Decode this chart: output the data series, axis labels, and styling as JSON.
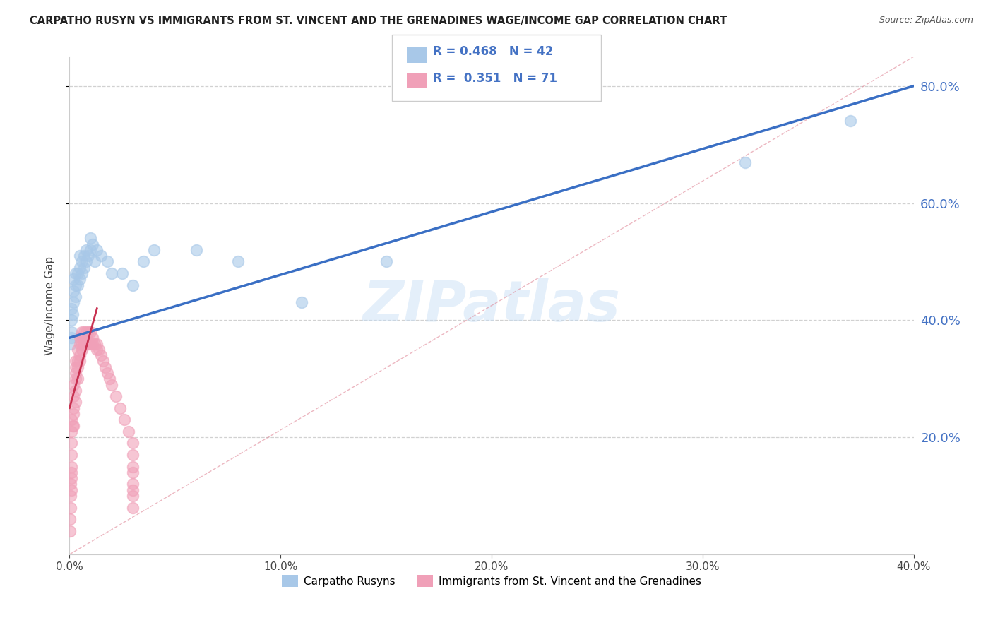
{
  "title": "CARPATHO RUSYN VS IMMIGRANTS FROM ST. VINCENT AND THE GRENADINES WAGE/INCOME GAP CORRELATION CHART",
  "source": "Source: ZipAtlas.com",
  "ylabel": "Wage/Income Gap",
  "watermark": "ZIPatlas",
  "series1_label": "Carpatho Rusyns",
  "series2_label": "Immigrants from St. Vincent and the Grenadines",
  "series1_R": 0.468,
  "series1_N": 42,
  "series2_R": 0.351,
  "series2_N": 71,
  "series1_color": "#a8c8e8",
  "series2_color": "#f0a0b8",
  "line1_color": "#3a6fc4",
  "line2_color": "#c83050",
  "dash_color": "#e08898",
  "xlim": [
    0.0,
    0.4
  ],
  "ylim": [
    0.0,
    0.85
  ],
  "xticks": [
    0.0,
    0.1,
    0.2,
    0.3,
    0.4
  ],
  "yticks": [
    0.2,
    0.4,
    0.6,
    0.8
  ],
  "background_color": "#ffffff",
  "grid_color": "#cccccc",
  "series1_x": [
    0.0005,
    0.0008,
    0.001,
    0.001,
    0.001,
    0.0015,
    0.002,
    0.002,
    0.002,
    0.003,
    0.003,
    0.003,
    0.004,
    0.004,
    0.005,
    0.005,
    0.005,
    0.006,
    0.006,
    0.007,
    0.007,
    0.008,
    0.008,
    0.009,
    0.01,
    0.01,
    0.011,
    0.012,
    0.013,
    0.015,
    0.018,
    0.02,
    0.025,
    0.03,
    0.035,
    0.04,
    0.06,
    0.08,
    0.11,
    0.15,
    0.32,
    0.37
  ],
  "series1_y": [
    0.36,
    0.38,
    0.37,
    0.4,
    0.42,
    0.41,
    0.43,
    0.45,
    0.47,
    0.44,
    0.46,
    0.48,
    0.46,
    0.48,
    0.47,
    0.49,
    0.51,
    0.48,
    0.5,
    0.49,
    0.51,
    0.5,
    0.52,
    0.51,
    0.52,
    0.54,
    0.53,
    0.5,
    0.52,
    0.51,
    0.5,
    0.48,
    0.48,
    0.46,
    0.5,
    0.52,
    0.52,
    0.5,
    0.43,
    0.5,
    0.67,
    0.74
  ],
  "series2_x": [
    0.0002,
    0.0003,
    0.0004,
    0.0005,
    0.0006,
    0.0007,
    0.0008,
    0.0009,
    0.001,
    0.001,
    0.001,
    0.001,
    0.001,
    0.0015,
    0.002,
    0.002,
    0.002,
    0.002,
    0.002,
    0.003,
    0.003,
    0.003,
    0.003,
    0.003,
    0.003,
    0.004,
    0.004,
    0.004,
    0.004,
    0.005,
    0.005,
    0.005,
    0.005,
    0.006,
    0.006,
    0.006,
    0.006,
    0.007,
    0.007,
    0.007,
    0.008,
    0.008,
    0.008,
    0.009,
    0.009,
    0.01,
    0.01,
    0.011,
    0.011,
    0.012,
    0.013,
    0.013,
    0.014,
    0.015,
    0.016,
    0.017,
    0.018,
    0.019,
    0.02,
    0.022,
    0.024,
    0.026,
    0.028,
    0.03,
    0.03,
    0.03,
    0.03,
    0.03,
    0.03,
    0.03,
    0.03
  ],
  "series2_y": [
    0.04,
    0.06,
    0.08,
    0.1,
    0.12,
    0.11,
    0.13,
    0.15,
    0.14,
    0.17,
    0.19,
    0.21,
    0.23,
    0.22,
    0.24,
    0.22,
    0.25,
    0.27,
    0.29,
    0.26,
    0.28,
    0.3,
    0.31,
    0.32,
    0.33,
    0.3,
    0.32,
    0.33,
    0.35,
    0.33,
    0.34,
    0.36,
    0.37,
    0.35,
    0.36,
    0.37,
    0.38,
    0.36,
    0.37,
    0.38,
    0.36,
    0.37,
    0.38,
    0.36,
    0.38,
    0.36,
    0.38,
    0.36,
    0.37,
    0.36,
    0.35,
    0.36,
    0.35,
    0.34,
    0.33,
    0.32,
    0.31,
    0.3,
    0.29,
    0.27,
    0.25,
    0.23,
    0.21,
    0.19,
    0.17,
    0.15,
    0.14,
    0.12,
    0.11,
    0.1,
    0.08
  ]
}
